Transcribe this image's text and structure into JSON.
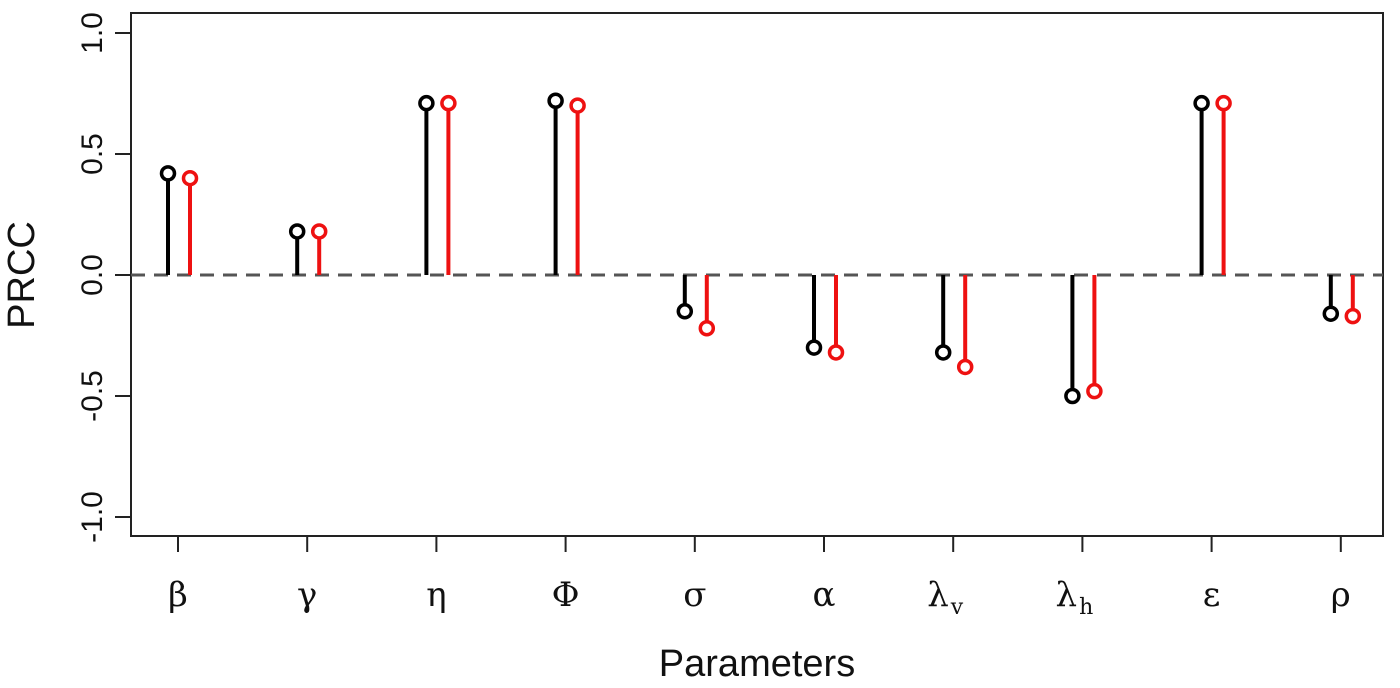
{
  "chart_data": {
    "type": "lollipop",
    "xlabel": "Parameters",
    "ylabel": "PRCC",
    "ylim": [
      -1.0,
      1.0
    ],
    "yticks": [
      "-1.0",
      "-0.5",
      "0.0",
      "0.5",
      "1.0"
    ],
    "yticks_values": [
      -1.0,
      -0.5,
      0.0,
      0.5,
      1.0
    ],
    "reference_line": {
      "y": 0,
      "style": "dashed",
      "color": "#555555"
    },
    "grid": false,
    "legend": "none",
    "categories": [
      {
        "symbol": "β",
        "sub": ""
      },
      {
        "symbol": "γ",
        "sub": ""
      },
      {
        "symbol": "η",
        "sub": ""
      },
      {
        "symbol": "Φ",
        "sub": ""
      },
      {
        "symbol": "σ",
        "sub": ""
      },
      {
        "symbol": "α",
        "sub": ""
      },
      {
        "symbol": "λ",
        "sub": "v"
      },
      {
        "symbol": "λ",
        "sub": "h"
      },
      {
        "symbol": "ε",
        "sub": ""
      },
      {
        "symbol": "ρ",
        "sub": ""
      }
    ],
    "series": [
      {
        "color": "#000000",
        "values": [
          0.42,
          0.18,
          0.71,
          0.72,
          -0.15,
          -0.3,
          -0.32,
          -0.5,
          0.71,
          -0.16
        ]
      },
      {
        "color": "#ee1111",
        "values": [
          0.4,
          0.18,
          0.71,
          0.7,
          -0.22,
          -0.32,
          -0.38,
          -0.48,
          0.71,
          -0.17
        ]
      }
    ]
  }
}
